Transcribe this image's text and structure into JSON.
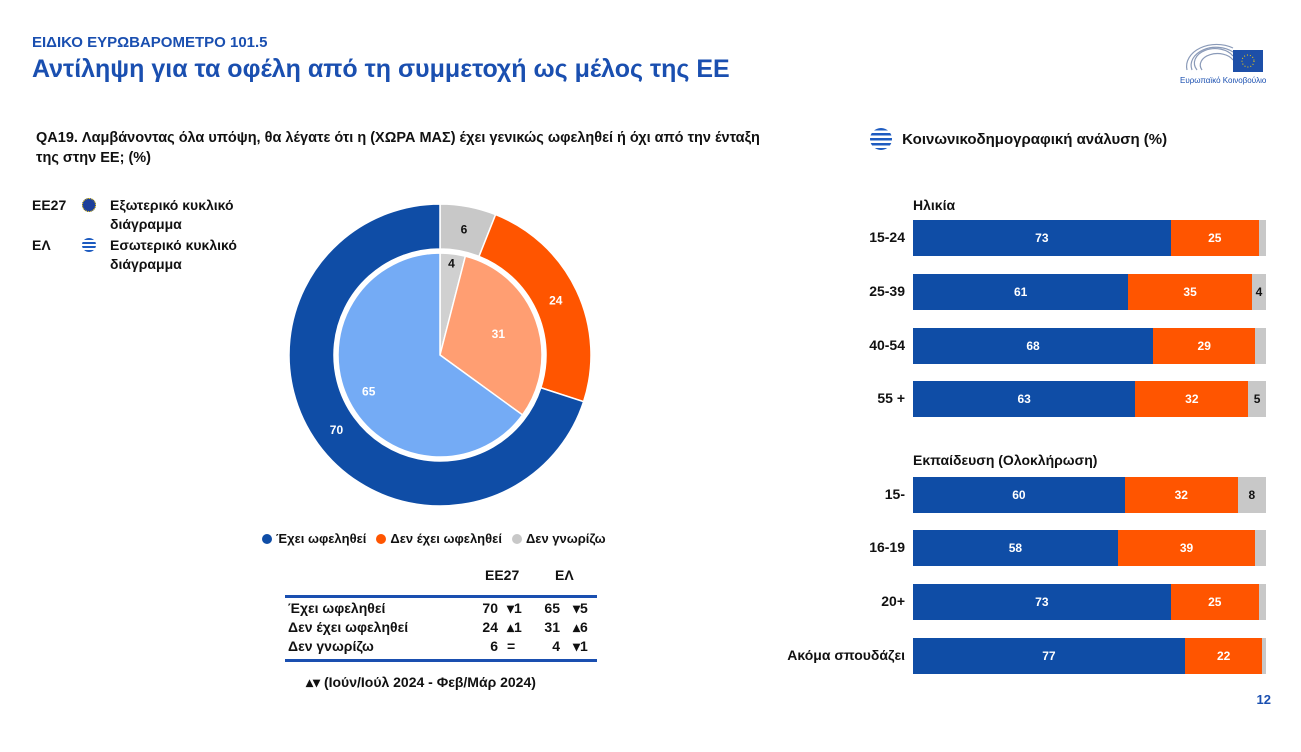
{
  "header": {
    "kicker": "ΕΙΔΙΚΟ ΕΥΡΩΒΑΡΟΜΕΤΡΟ 101.5",
    "title": "Αντίληψη για τα οφέλη από τη συμμετοχή ως μέλος της ΕΕ",
    "logo_text": "Ευρωπαϊκό Κοινοβούλιο"
  },
  "question": "QA19. Λαμβάνοντας όλα υπόψη, θα λέγατε ότι η (ΧΩΡΑ ΜΑΣ) έχει γενικώς ωφεληθεί ή όχι από την ένταξη της στην ΕΕ; (%)",
  "ring_legend": [
    {
      "code": "EE27",
      "text": "Εξωτερικό κυκλικό διάγραμμα"
    },
    {
      "code": "ΕΛ",
      "text": "Εσωτερικό κυκλικό διάγραμμα"
    }
  ],
  "colors": {
    "benefit": "#0f4da6",
    "not_benefit": "#ff5500",
    "dk": "#c8c8c8",
    "benefit_light": "#74abf5",
    "not_benefit_light": "#ff9e72",
    "dk_light": "#d0d0d0",
    "title": "#1a4fb0"
  },
  "chart_data": [
    {
      "type": "pie",
      "name": "donut",
      "categories": [
        "Δεν γνωρίζω",
        "Δεν έχει ωφεληθεί",
        "Έχει ωφεληθεί"
      ],
      "series": [
        {
          "name": "EE27",
          "ring": "outer",
          "values": [
            6,
            24,
            70
          ]
        },
        {
          "name": "ΕΛ",
          "ring": "inner",
          "values": [
            4,
            31,
            65
          ]
        }
      ],
      "legend": [
        "Έχει ωφεληθεί",
        "Δεν έχει ωφεληθεί",
        "Δεν γνωρίζω"
      ],
      "legend_placement": "bottom"
    },
    {
      "type": "bar",
      "stacked": true,
      "orientation": "horizontal",
      "title": "Κοινωνικοδημογραφική ανάλυση (%)",
      "groups": [
        {
          "label": "Ηλικία",
          "rows": [
            {
              "label": "15-24",
              "values": [
                73,
                25,
                2
              ],
              "shown": [
                "73",
                "25",
                ""
              ]
            },
            {
              "label": "25-39",
              "values": [
                61,
                35,
                4
              ],
              "shown": [
                "61",
                "35",
                "4"
              ]
            },
            {
              "label": "40-54",
              "values": [
                68,
                29,
                3
              ],
              "shown": [
                "68",
                "29",
                ""
              ]
            },
            {
              "label": "55 +",
              "values": [
                63,
                32,
                5
              ],
              "shown": [
                "63",
                "32",
                "5"
              ]
            }
          ]
        },
        {
          "label": "Εκπαίδευση (Ολοκλήρωση)",
          "rows": [
            {
              "label": "15-",
              "values": [
                60,
                32,
                8
              ],
              "shown": [
                "60",
                "32",
                "8"
              ]
            },
            {
              "label": "16-19",
              "values": [
                58,
                39,
                3
              ],
              "shown": [
                "58",
                "39",
                ""
              ]
            },
            {
              "label": "20+",
              "values": [
                73,
                25,
                2
              ],
              "shown": [
                "73",
                "25",
                ""
              ]
            },
            {
              "label": "Ακόμα σπουδάζει",
              "values": [
                77,
                22,
                1
              ],
              "shown": [
                "77",
                "22",
                ""
              ]
            }
          ]
        }
      ]
    }
  ],
  "table": {
    "headers": [
      "EE27",
      "ΕΛ"
    ],
    "rows": [
      {
        "label": "Έχει ωφεληθεί",
        "eu": "70",
        "eu_ch": "▾1",
        "el": "65",
        "el_ch": "▾5"
      },
      {
        "label": "Δεν έχει ωφεληθεί",
        "eu": "24",
        "eu_ch": "▴1",
        "el": "31",
        "el_ch": "▴6"
      },
      {
        "label": "Δεν γνωρίζω",
        "eu": "6",
        "eu_ch": "=",
        "el": "4",
        "el_ch": "▾1"
      }
    ]
  },
  "footnote": "▴▾ (Ιούν/Ιούλ 2024 - Φεβ/Μάρ 2024)",
  "page_number": "12"
}
